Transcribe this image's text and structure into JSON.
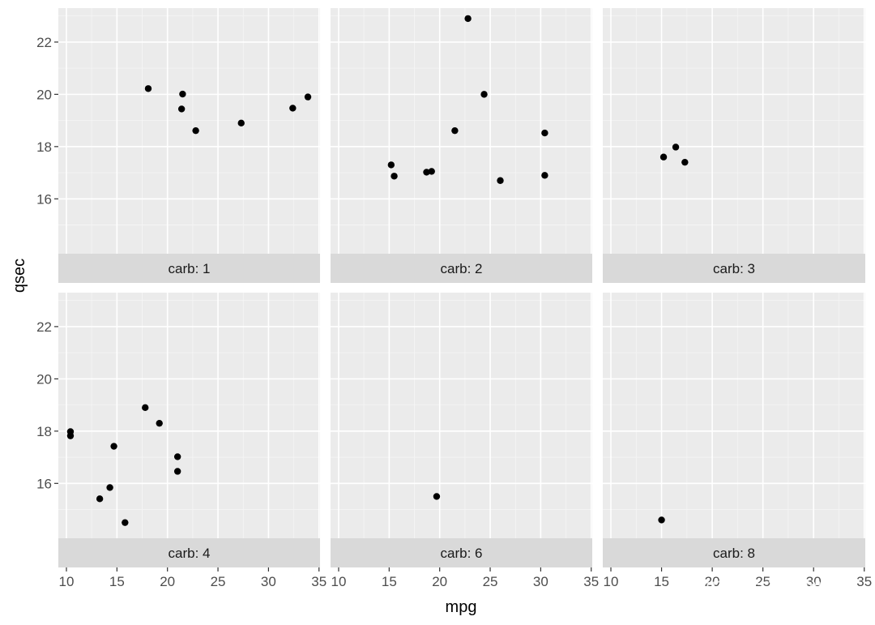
{
  "chart_data": {
    "type": "scatter",
    "facet_by": "carb",
    "xlabel": "mpg",
    "ylabel": "qsec",
    "xlim": [
      9.2,
      35.1
    ],
    "ylim": [
      13.9,
      23.3
    ],
    "xticks": [
      10,
      15,
      20,
      25,
      30,
      35
    ],
    "yticks": [
      16,
      18,
      20,
      22
    ],
    "grid": true,
    "point_color": "#000000",
    "panel_bg": "#ebebeb",
    "strip_bg": "#d9d9d9",
    "panels": [
      {
        "strip": "carb: 1",
        "points": [
          [
            18.1,
            20.22
          ],
          [
            21.4,
            19.44
          ],
          [
            21.5,
            20.01
          ],
          [
            22.8,
            18.61
          ],
          [
            27.3,
            18.9
          ],
          [
            32.4,
            19.47
          ],
          [
            33.9,
            19.9
          ]
        ]
      },
      {
        "strip": "carb: 2",
        "points": [
          [
            15.2,
            17.3
          ],
          [
            15.5,
            16.87
          ],
          [
            18.7,
            17.02
          ],
          [
            19.2,
            17.05
          ],
          [
            21.5,
            18.61
          ],
          [
            22.8,
            22.9
          ],
          [
            24.4,
            20.0
          ],
          [
            26.0,
            16.7
          ],
          [
            30.4,
            18.52
          ],
          [
            30.4,
            16.9
          ]
        ]
      },
      {
        "strip": "carb: 3",
        "points": [
          [
            16.4,
            17.98
          ],
          [
            17.3,
            17.4
          ],
          [
            15.2,
            17.6
          ]
        ]
      },
      {
        "strip": "carb: 4",
        "points": [
          [
            10.4,
            17.98
          ],
          [
            10.4,
            17.82
          ],
          [
            13.3,
            15.41
          ],
          [
            14.3,
            15.84
          ],
          [
            14.7,
            17.42
          ],
          [
            15.8,
            14.5
          ],
          [
            17.8,
            18.9
          ],
          [
            19.2,
            18.3
          ],
          [
            21.0,
            17.02
          ],
          [
            21.0,
            16.46
          ]
        ]
      },
      {
        "strip": "carb: 6",
        "points": [
          [
            19.7,
            15.5
          ]
        ]
      },
      {
        "strip": "carb: 8",
        "points": [
          [
            15.0,
            14.6
          ]
        ]
      }
    ]
  },
  "watermark": "知乎 @R语言学堂"
}
